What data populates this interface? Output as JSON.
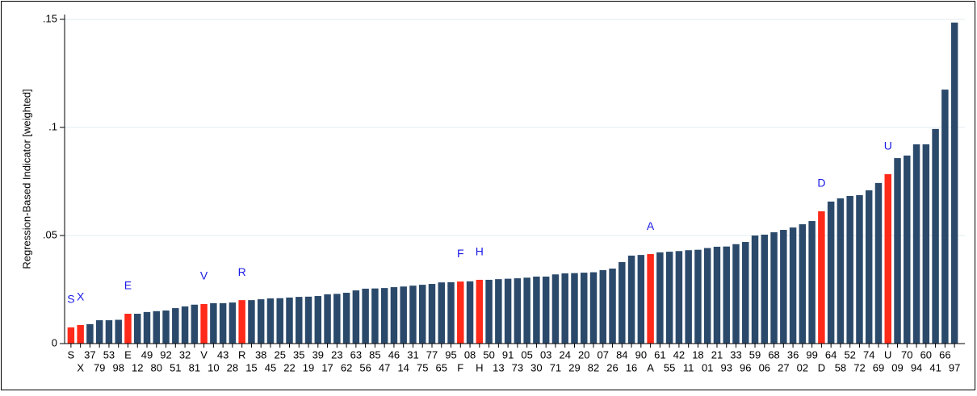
{
  "chart_data": {
    "type": "bar",
    "y_label": "Regression-Based Indicator [weighted]",
    "categories": [
      "S",
      "X",
      "37",
      "79",
      "53",
      "98",
      "E",
      "12",
      "49",
      "80",
      "92",
      "51",
      "32",
      "81",
      "V",
      "10",
      "43",
      "28",
      "R",
      "15",
      "38",
      "45",
      "25",
      "22",
      "35",
      "19",
      "39",
      "17",
      "23",
      "62",
      "63",
      "56",
      "85",
      "47",
      "46",
      "14",
      "31",
      "75",
      "77",
      "65",
      "95",
      "F",
      "08",
      "H",
      "50",
      "13",
      "91",
      "73",
      "05",
      "30",
      "03",
      "71",
      "24",
      "29",
      "20",
      "82",
      "07",
      "26",
      "84",
      "16",
      "90",
      "A",
      "61",
      "55",
      "42",
      "11",
      "18",
      "01",
      "21",
      "93",
      "33",
      "96",
      "59",
      "06",
      "68",
      "27",
      "36",
      "02",
      "99",
      "D",
      "64",
      "58",
      "52",
      "72",
      "74",
      "69",
      "U",
      "09",
      "70",
      "94",
      "60",
      "41",
      "66",
      "97"
    ],
    "values": [
      0.0075,
      0.0086,
      0.009,
      0.0108,
      0.0108,
      0.011,
      0.0138,
      0.0138,
      0.0146,
      0.015,
      0.0153,
      0.0164,
      0.0172,
      0.018,
      0.0183,
      0.0187,
      0.0187,
      0.019,
      0.0201,
      0.0201,
      0.0205,
      0.0209,
      0.021,
      0.0213,
      0.0216,
      0.0217,
      0.022,
      0.0228,
      0.023,
      0.0235,
      0.0246,
      0.0254,
      0.0255,
      0.0257,
      0.0261,
      0.0264,
      0.0268,
      0.0272,
      0.0276,
      0.0283,
      0.0284,
      0.0287,
      0.0288,
      0.0295,
      0.0295,
      0.0298,
      0.03,
      0.0302,
      0.0305,
      0.031,
      0.031,
      0.032,
      0.0325,
      0.0326,
      0.0328,
      0.033,
      0.034,
      0.0347,
      0.0377,
      0.0407,
      0.041,
      0.0414,
      0.0422,
      0.0425,
      0.0428,
      0.0432,
      0.0434,
      0.0442,
      0.0448,
      0.0449,
      0.046,
      0.047,
      0.05,
      0.0504,
      0.0515,
      0.0526,
      0.0537,
      0.0552,
      0.0567,
      0.0612,
      0.0657,
      0.0672,
      0.0683,
      0.0687,
      0.0709,
      0.0743,
      0.0784,
      0.0858,
      0.087,
      0.0922,
      0.0922,
      0.0993,
      0.1175,
      0.1485
    ],
    "color": "#2b4a6b",
    "highlight_color": "#ff2a1a",
    "annotation_color": "#1a1ae6",
    "annotations": [
      "S",
      "X",
      "E",
      "V",
      "R",
      "F",
      "H",
      "A",
      "D",
      "U"
    ],
    "ylim": [
      0,
      0.15
    ],
    "yticks": [
      0,
      {
        "value": 0.05,
        "label": ".05"
      },
      {
        "value": 0.1,
        "label": ".1"
      },
      {
        "value": 0.15,
        "label": ".15"
      }
    ],
    "grid": true
  }
}
